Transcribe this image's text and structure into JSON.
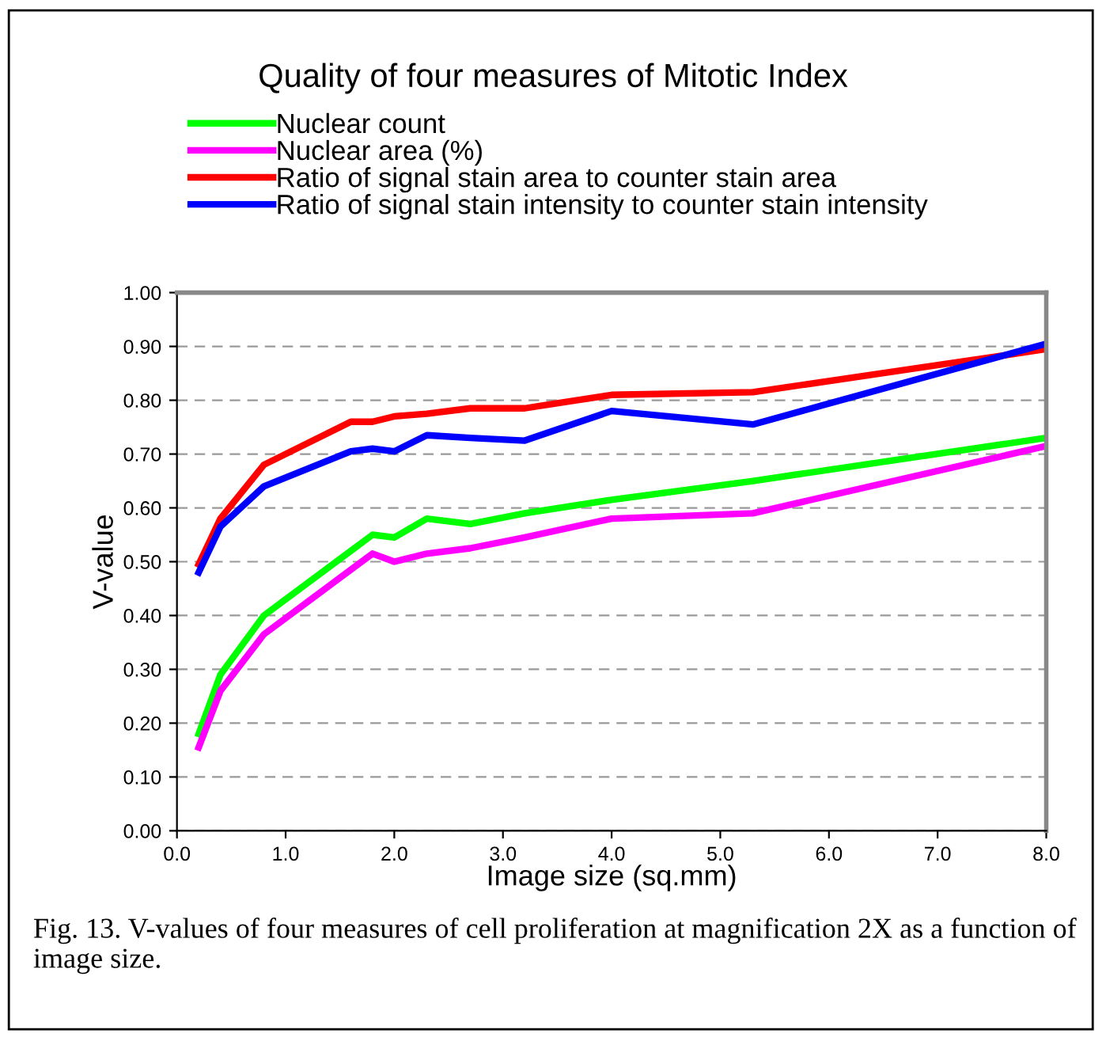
{
  "chart_data": {
    "type": "line",
    "title": "Quality of four measures of Mitotic Index",
    "xlabel": "Image size (sq.mm)",
    "ylabel": "V-value",
    "x": [
      0.2,
      0.4,
      0.8,
      1.6,
      1.8,
      2.0,
      2.3,
      2.7,
      3.2,
      4.0,
      5.3,
      8.0
    ],
    "series": [
      {
        "name": "Nuclear count",
        "color": "#00ff00",
        "values": [
          0.18,
          0.29,
          0.4,
          0.52,
          0.55,
          0.545,
          0.58,
          0.57,
          0.59,
          0.615,
          0.65,
          0.73
        ]
      },
      {
        "name": "Nuclear area (%)",
        "color": "#ff00ff",
        "values": [
          0.155,
          0.26,
          0.365,
          0.485,
          0.515,
          0.5,
          0.515,
          0.525,
          0.545,
          0.58,
          0.59,
          0.715
        ]
      },
      {
        "name": "Ratio of signal stain area to counter stain area",
        "color": "#ff0000",
        "values": [
          0.495,
          0.58,
          0.68,
          0.76,
          0.76,
          0.77,
          0.775,
          0.785,
          0.785,
          0.81,
          0.815,
          0.895
        ]
      },
      {
        "name": "Ratio of signal stain intensity to counter stain intensity",
        "color": "#0000ff",
        "values": [
          0.48,
          0.565,
          0.64,
          0.705,
          0.71,
          0.705,
          0.735,
          0.73,
          0.725,
          0.78,
          0.755,
          0.905
        ]
      }
    ],
    "xlim": [
      0.0,
      8.0
    ],
    "xticks": [
      {
        "value": 0,
        "label": "0.0"
      },
      {
        "value": 1,
        "label": "1.0"
      },
      {
        "value": 2,
        "label": "2.0"
      },
      {
        "value": 3,
        "label": "3.0"
      },
      {
        "value": 4,
        "label": "4.0"
      },
      {
        "value": 5,
        "label": "5.0"
      },
      {
        "value": 6,
        "label": "6.0"
      },
      {
        "value": 7,
        "label": "7.0"
      },
      {
        "value": 8,
        "label": "8.0"
      }
    ],
    "ylim": [
      0.0,
      1.0
    ],
    "yticks": [
      {
        "value": 0,
        "label": "0.00"
      },
      {
        "value": 0.1,
        "label": "0.10"
      },
      {
        "value": 0.2,
        "label": "0.20"
      },
      {
        "value": 0.3,
        "label": "0.30"
      },
      {
        "value": 0.4,
        "label": "0.40"
      },
      {
        "value": 0.5,
        "label": "0.50"
      },
      {
        "value": 0.6,
        "label": "0.60"
      },
      {
        "value": 0.7,
        "label": "0.70"
      },
      {
        "value": 0.8,
        "label": "0.80"
      },
      {
        "value": 0.9,
        "label": "0.90"
      },
      {
        "value": 1.0,
        "label": "1.00"
      }
    ],
    "grid": "y",
    "legend": "top",
    "marker": "none",
    "line_style": "solid",
    "annotations": [
      "Fig. 13. V-values of four measures of cell proliferation at magnification 2X as a function of image size."
    ]
  }
}
